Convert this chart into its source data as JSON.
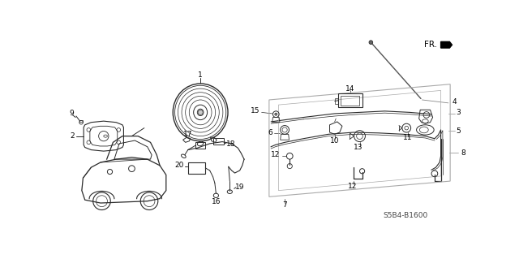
{
  "bg_color": "#ffffff",
  "fig_width": 6.4,
  "fig_height": 3.19,
  "dpi": 100,
  "diagram_code": "S5B4-B1600",
  "line_color": "#2a2a2a",
  "gray_color": "#888888",
  "light_gray": "#aaaaaa"
}
